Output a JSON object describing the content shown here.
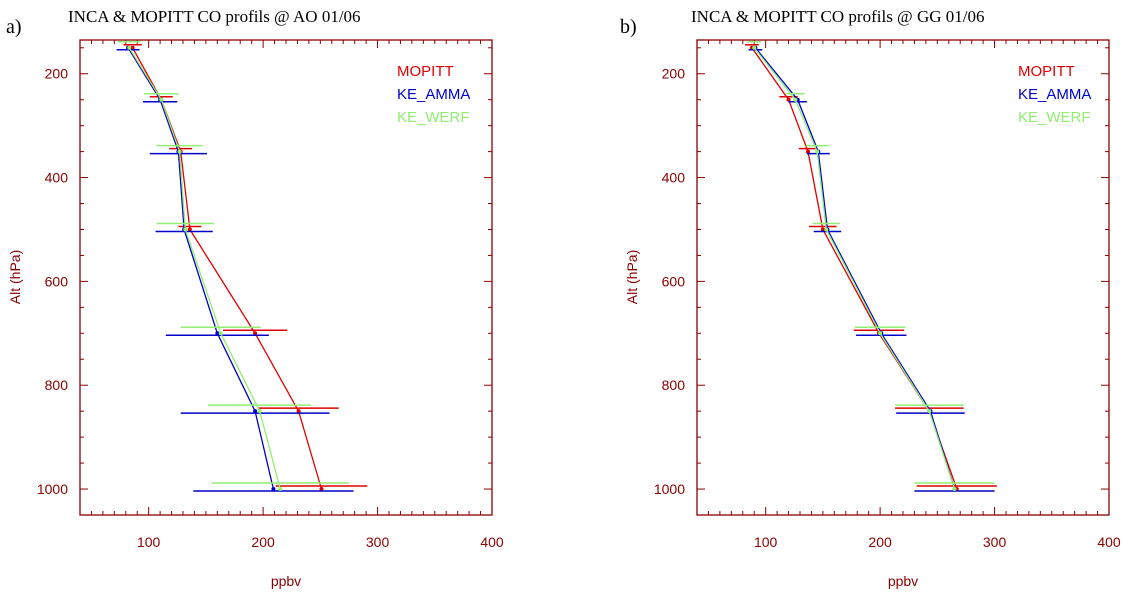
{
  "chart_data": [
    {
      "type": "line",
      "panel_letter": "a)",
      "title": "INCA & MOPITT CO profils @ AO  01/06",
      "xlabel": "ppbv",
      "ylabel": "Alt (hPa)",
      "xlim": [
        40,
        400
      ],
      "ylim": [
        1050,
        135
      ],
      "y_inverted": true,
      "xticks": [
        100,
        200,
        300,
        400
      ],
      "yticks": [
        200,
        400,
        600,
        800,
        1000
      ],
      "legend_position": "top-right",
      "series": [
        {
          "name": "MOPITT",
          "color": "#e00000",
          "y": [
            150,
            250,
            350,
            500,
            700,
            850,
            1000
          ],
          "x": [
            86,
            111,
            128,
            136,
            193,
            231,
            251
          ],
          "xerr": [
            8,
            10,
            10,
            10,
            28,
            35,
            40
          ]
        },
        {
          "name": "KE_AMMA",
          "color": "#0000cc",
          "y": [
            150,
            250,
            350,
            500,
            700,
            850,
            1000
          ],
          "x": [
            82,
            110,
            126,
            131,
            160,
            193,
            209
          ],
          "xerr": [
            10,
            15,
            25,
            25,
            45,
            65,
            70
          ]
        },
        {
          "name": "KE_WERF",
          "color": "#90ee70",
          "y": [
            150,
            250,
            350,
            500,
            700,
            850,
            1000
          ],
          "x": [
            83,
            111,
            127,
            132,
            163,
            197,
            215
          ],
          "xerr": [
            10,
            15,
            20,
            25,
            35,
            45,
            60
          ]
        }
      ]
    },
    {
      "type": "line",
      "panel_letter": "b)",
      "title": "INCA & MOPITT CO profils @ GG  01/06",
      "xlabel": "ppbv",
      "ylabel": "Alt (hPa)",
      "xlim": [
        40,
        400
      ],
      "ylim": [
        1050,
        135
      ],
      "y_inverted": true,
      "xticks": [
        100,
        200,
        300,
        400
      ],
      "yticks": [
        200,
        400,
        600,
        800,
        1000
      ],
      "legend_position": "top-right",
      "series": [
        {
          "name": "MOPITT",
          "color": "#e00000",
          "y": [
            150,
            250,
            350,
            500,
            700,
            850,
            1000
          ],
          "x": [
            88,
            120,
            137,
            150,
            199,
            243,
            267
          ],
          "xerr": [
            6,
            8,
            8,
            12,
            22,
            30,
            35
          ]
        },
        {
          "name": "KE_AMMA",
          "color": "#0000cc",
          "y": [
            150,
            250,
            350,
            500,
            700,
            850,
            1000
          ],
          "x": [
            91,
            128,
            146,
            154,
            201,
            244,
            265
          ],
          "xerr": [
            6,
            8,
            10,
            12,
            22,
            30,
            35
          ]
        },
        {
          "name": "KE_WERF",
          "color": "#90ee70",
          "y": [
            150,
            250,
            350,
            500,
            700,
            850,
            1000
          ],
          "x": [
            90,
            126,
            145,
            153,
            200,
            243,
            265
          ],
          "xerr": [
            6,
            8,
            10,
            12,
            22,
            30,
            35
          ]
        }
      ]
    }
  ]
}
